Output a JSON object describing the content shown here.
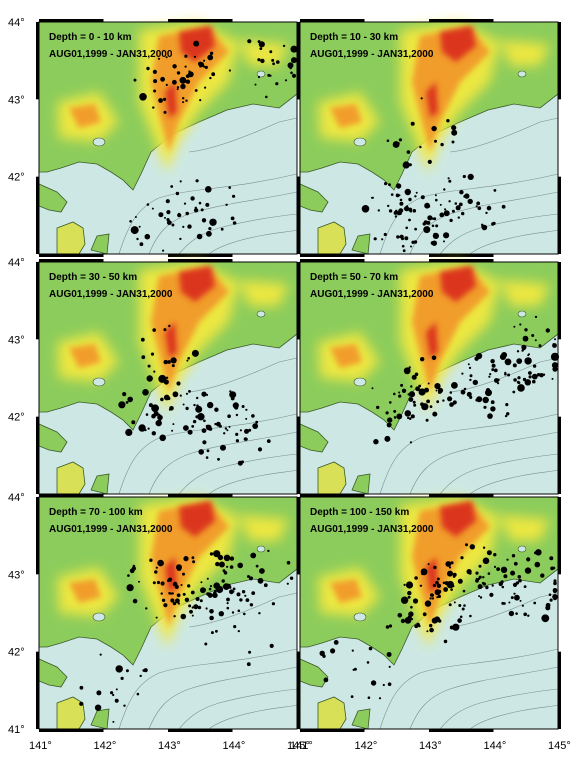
{
  "figure": {
    "panels": [
      {
        "depth_label": "Depth = 0 - 10 km",
        "period_label": "AUG01,1999 - JAN31,2000"
      },
      {
        "depth_label": "Depth = 10 - 30 km",
        "period_label": "AUG01,1999 - JAN31,2000"
      },
      {
        "depth_label": "Depth = 30 - 50 km",
        "period_label": "AUG01,1999 - JAN31,2000"
      },
      {
        "depth_label": "Depth = 50 - 70 km",
        "period_label": "AUG01,1999 - JAN31,2000"
      },
      {
        "depth_label": "Depth = 70 - 100 km",
        "period_label": "AUG01,1999 - JAN31,2000"
      },
      {
        "depth_label": "Depth = 100 - 150 km",
        "period_label": "AUG01,1999 - JAN31,2000"
      }
    ],
    "lat_labels": [
      "44",
      "43",
      "42",
      "41"
    ],
    "lat_values": [
      44,
      43,
      42,
      41
    ],
    "lon_labels": [
      "141",
      "142",
      "143",
      "144",
      "145"
    ],
    "lon_values": [
      141,
      142,
      143,
      144,
      145
    ],
    "colors": {
      "sea": "#cde8e4",
      "land_low": "#8ccc5c",
      "mid": "#f2e840",
      "high": "#f29a2a",
      "peak": "#d92a1e",
      "quake": "#000000"
    }
  }
}
